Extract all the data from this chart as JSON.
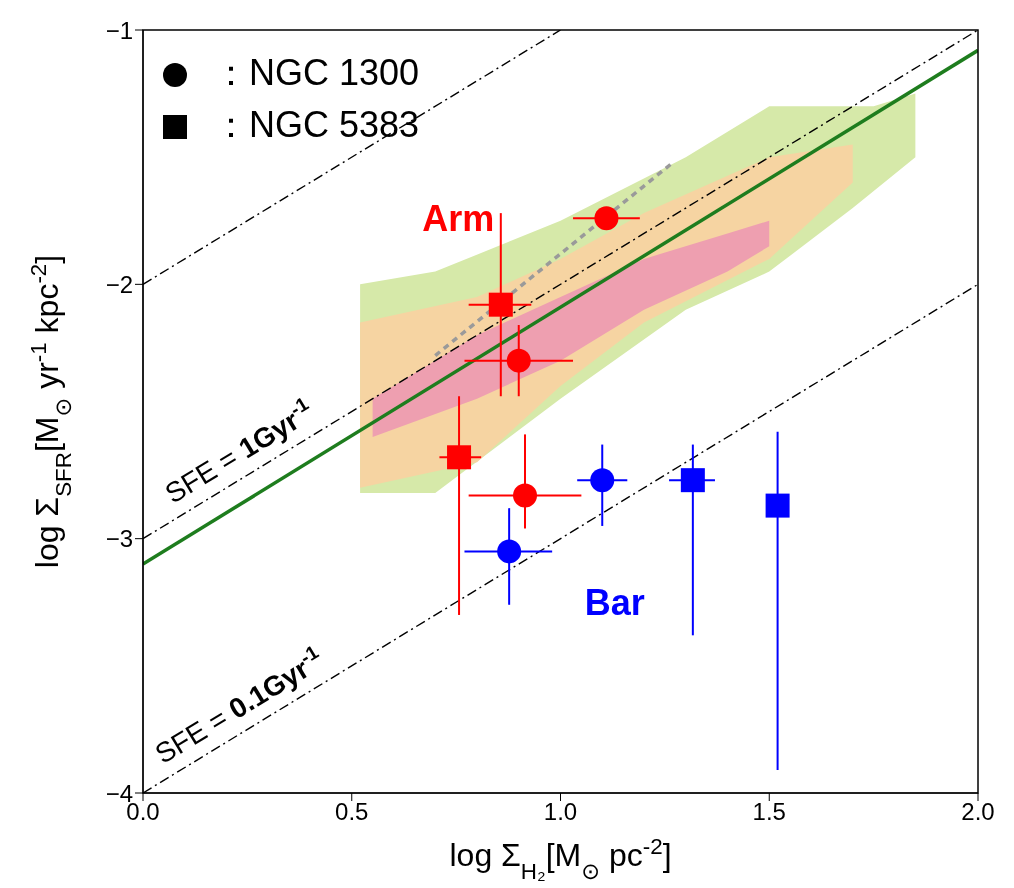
{
  "chart_data": {
    "type": "scatter",
    "xlabel": "log Σ$_{H₂}$[M$_{⊙}$ pc$^{-2}$]",
    "ylabel": "log Σ$_{SFR}$[M$_{⊙}$ yr$^{-1}$ kpc$^{-2}$]",
    "xlim": [
      0,
      2
    ],
    "xticks": [
      {
        "value": 0,
        "label": "0.0"
      },
      {
        "value": 0.5,
        "label": "0.5"
      },
      {
        "value": 1,
        "label": "1.0"
      },
      {
        "value": 1.5,
        "label": "1.5"
      },
      {
        "value": 2,
        "label": "2.0"
      }
    ],
    "ylim": [
      -4,
      -1
    ],
    "yticks": [
      {
        "value": -4,
        "label": "−4"
      },
      {
        "value": -3,
        "label": "−3"
      },
      {
        "value": -2,
        "label": "−2"
      },
      {
        "value": -1,
        "label": "−1"
      }
    ],
    "annotations": [
      "：NGC 1300",
      "：NGC 5383",
      "Arm",
      "Bar"
    ],
    "series": [
      {
        "type": "line",
        "color": "#000000",
        "line_style": "dashed",
        "x": [
          0,
          1
        ],
        "values": [
          -2,
          -1
        ]
      },
      {
        "type": "line",
        "name": "SFE = 1Gyr$^{-1}$",
        "color": "#000000",
        "line_style": "dashed",
        "x": [
          0,
          2
        ],
        "values": [
          -3,
          -1
        ]
      },
      {
        "type": "line",
        "name": "SFE = 0.1Gyr$^{-1}$",
        "color": "#000000",
        "line_style": "dashed",
        "x": [
          0,
          2
        ],
        "values": [
          -4,
          -2
        ]
      },
      {
        "type": "line",
        "color": "#1e7d1e",
        "line_style": "solid",
        "x": [
          0,
          2
        ],
        "values": [
          -3.1,
          -1.08
        ]
      },
      {
        "type": "line",
        "color": "#9a9a9a",
        "line_style": "dotted",
        "x": [
          0.7,
          1.27
        ],
        "values": [
          -2.28,
          -1.52
        ]
      },
      {
        "marker": "circle",
        "x": [
          1.11,
          0.9,
          0.915,
          0.877,
          1.1
        ],
        "values": [
          -1.74,
          -2.3,
          -2.83,
          -3.05,
          -2.77
        ],
        "colors": [
          "#ff0000",
          "#ff0000",
          "#ff0000",
          "#0000ff",
          "#0000ff"
        ],
        "xerrors": [
          [
            1.03,
            1.19
          ],
          [
            0.77,
            1.03
          ],
          [
            0.78,
            1.05
          ],
          [
            0.77,
            0.98
          ],
          [
            1.04,
            1.16
          ]
        ],
        "errors": [
          null,
          [
            -2.44,
            -2.16
          ],
          [
            -2.96,
            -2.59
          ],
          [
            -3.26,
            -2.88
          ],
          [
            -2.95,
            -2.63
          ]
        ]
      },
      {
        "marker": "square",
        "x": [
          0.857,
          0.757,
          1.317,
          1.52
        ],
        "values": [
          -2.08,
          -2.68,
          -2.77,
          -2.87
        ],
        "colors": [
          "#ff0000",
          "#ff0000",
          "#0000ff",
          "#0000ff"
        ],
        "xerrors": [
          [
            0.78,
            0.93
          ],
          [
            0.71,
            0.81
          ],
          [
            1.26,
            1.37
          ],
          null
        ],
        "errors": [
          [
            -2.44,
            -1.72
          ],
          [
            -3.3,
            -2.44
          ],
          [
            -3.38,
            -2.63
          ],
          [
            -3.91,
            -2.58
          ]
        ]
      }
    ]
  }
}
